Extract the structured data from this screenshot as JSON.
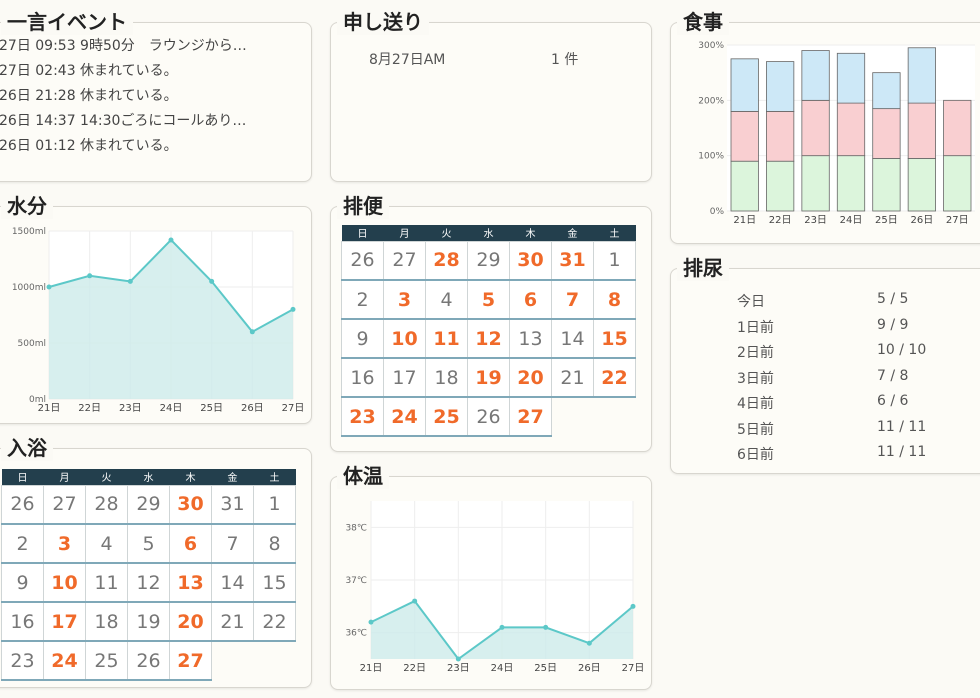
{
  "colors": {
    "accent": "#f06a2a",
    "calendar_header": "#233f4d",
    "line": "#5cc8c8",
    "area": "#cdebea",
    "meal_breakfast": "#dcf5dc",
    "meal_lunch": "#f9cfd1",
    "meal_dinner": "#cde8f7"
  },
  "events": {
    "title": "一言イベント",
    "items": [
      "27日 09:53 9時50分　ラウンジから…",
      "27日 02:43 休まれている。",
      "26日 21:28 休まれている。",
      "26日 14:37 14:30ごろにコールあり…",
      "26日 01:12 休まれている。"
    ]
  },
  "handover": {
    "title": "申し送り",
    "date": "8月27日AM",
    "count": "1 件"
  },
  "meals": {
    "title": "食事",
    "chart_data": {
      "type": "bar",
      "categories": [
        "21日",
        "22日",
        "23日",
        "24日",
        "25日",
        "26日",
        "27日"
      ],
      "series": [
        {
          "values": [
            90,
            90,
            100,
            100,
            95,
            95,
            100
          ]
        },
        {
          "values": [
            90,
            90,
            100,
            95,
            90,
            100,
            100
          ]
        },
        {
          "values": [
            95,
            90,
            90,
            90,
            65,
            100,
            0
          ]
        }
      ],
      "ylim": [
        0,
        300
      ],
      "yticks": [
        "0%",
        "100%",
        "200%",
        "300%"
      ],
      "stacked": true
    }
  },
  "water": {
    "title": "水分",
    "chart_data": {
      "type": "area",
      "categories": [
        "21日",
        "22日",
        "23日",
        "24日",
        "25日",
        "26日",
        "27日"
      ],
      "values": [
        1000,
        1100,
        1050,
        1420,
        1050,
        600,
        800
      ],
      "ylim": [
        0,
        1500
      ],
      "yticks": [
        "0ml",
        "500ml",
        "1000ml",
        "1500ml"
      ]
    }
  },
  "urine": {
    "title": "排尿",
    "rows": [
      {
        "label": "今日",
        "value": "5 / 5"
      },
      {
        "label": "1日前",
        "value": "9 / 9"
      },
      {
        "label": "2日前",
        "value": "10 / 10"
      },
      {
        "label": "3日前",
        "value": "7 / 8"
      },
      {
        "label": "4日前",
        "value": "6 / 6"
      },
      {
        "label": "5日前",
        "value": "11 / 11"
      },
      {
        "label": "6日前",
        "value": "11 / 11"
      }
    ]
  },
  "weekdays": [
    "日",
    "月",
    "火",
    "水",
    "木",
    "金",
    "土"
  ],
  "bowel": {
    "title": "排便",
    "weeks": [
      [
        [
          "26",
          0
        ],
        [
          "27",
          0
        ],
        [
          "28",
          1
        ],
        [
          "29",
          0
        ],
        [
          "30",
          1
        ],
        [
          "31",
          1
        ],
        [
          "1",
          0
        ]
      ],
      [
        [
          "2",
          0
        ],
        [
          "3",
          1
        ],
        [
          "4",
          0
        ],
        [
          "5",
          1
        ],
        [
          "6",
          1
        ],
        [
          "7",
          1
        ],
        [
          "8",
          1
        ]
      ],
      [
        [
          "9",
          0
        ],
        [
          "10",
          1
        ],
        [
          "11",
          1
        ],
        [
          "12",
          1
        ],
        [
          "13",
          0
        ],
        [
          "14",
          0
        ],
        [
          "15",
          1
        ]
      ],
      [
        [
          "16",
          0
        ],
        [
          "17",
          0
        ],
        [
          "18",
          0
        ],
        [
          "19",
          1
        ],
        [
          "20",
          1
        ],
        [
          "21",
          0
        ],
        [
          "22",
          1
        ]
      ],
      [
        [
          "23",
          1
        ],
        [
          "24",
          1
        ],
        [
          "25",
          1
        ],
        [
          "26",
          0
        ],
        [
          "27",
          1
        ]
      ]
    ]
  },
  "bath": {
    "title": "入浴",
    "weeks": [
      [
        [
          "26",
          0
        ],
        [
          "27",
          0
        ],
        [
          "28",
          0
        ],
        [
          "29",
          0
        ],
        [
          "30",
          1
        ],
        [
          "31",
          0
        ],
        [
          "1",
          0
        ]
      ],
      [
        [
          "2",
          0
        ],
        [
          "3",
          1
        ],
        [
          "4",
          0
        ],
        [
          "5",
          0
        ],
        [
          "6",
          1
        ],
        [
          "7",
          0
        ],
        [
          "8",
          0
        ]
      ],
      [
        [
          "9",
          0
        ],
        [
          "10",
          1
        ],
        [
          "11",
          0
        ],
        [
          "12",
          0
        ],
        [
          "13",
          1
        ],
        [
          "14",
          0
        ],
        [
          "15",
          0
        ]
      ],
      [
        [
          "16",
          0
        ],
        [
          "17",
          1
        ],
        [
          "18",
          0
        ],
        [
          "19",
          0
        ],
        [
          "20",
          1
        ],
        [
          "21",
          0
        ],
        [
          "22",
          0
        ]
      ],
      [
        [
          "23",
          0
        ],
        [
          "24",
          1
        ],
        [
          "25",
          0
        ],
        [
          "26",
          0
        ],
        [
          "27",
          1
        ]
      ]
    ]
  },
  "temperature": {
    "title": "体温",
    "chart_data": {
      "type": "line",
      "categories": [
        "21日",
        "22日",
        "23日",
        "24日",
        "25日",
        "26日",
        "27日"
      ],
      "values": [
        36.2,
        36.6,
        35.5,
        36.1,
        36.1,
        35.8,
        36.5
      ],
      "ylim": [
        35.5,
        38.5
      ],
      "yticks": [
        "36℃",
        "37℃",
        "38℃"
      ]
    }
  }
}
